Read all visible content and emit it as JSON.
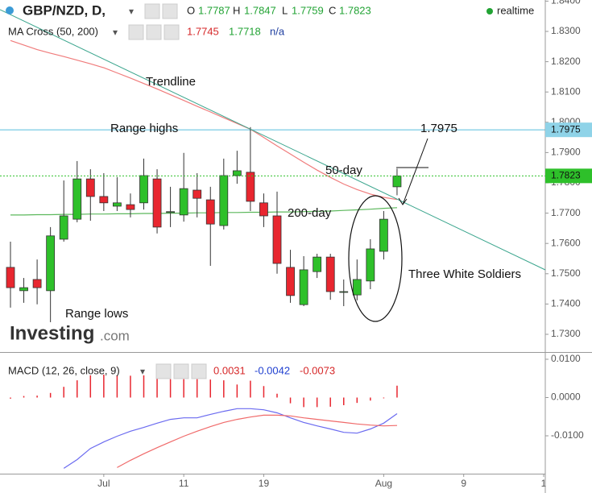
{
  "chart_data": {
    "type": "candlestick",
    "title": "GBP/NZD, D,",
    "status": "realtime",
    "ohlc_labels": [
      "O",
      "H",
      "L",
      "C"
    ],
    "categories": [
      null,
      null,
      null,
      null,
      null,
      null,
      null,
      "Jul",
      null,
      null,
      null,
      null,
      null,
      "11",
      null,
      null,
      null,
      null,
      null,
      "19",
      null,
      null,
      null,
      null,
      null,
      null,
      null,
      null,
      "Aug",
      null,
      null,
      null,
      null,
      null,
      "9",
      null,
      null,
      null,
      null,
      null,
      "1"
    ],
    "open": [
      1.7521,
      1.7444,
      1.7481,
      1.7444,
      1.7614,
      1.768,
      1.7813,
      1.7755,
      1.7723,
      1.7728,
      1.7734,
      1.7813,
      1.7702,
      1.7694,
      1.7776,
      1.7744,
      1.7659,
      1.7824,
      1.7835,
      1.7734,
      1.7691,
      1.7521,
      1.7398,
      1.7507,
      1.7555,
      1.744,
      1.743,
      1.7476,
      1.7574,
      1.7787,
      null,
      null,
      null,
      null,
      null,
      null,
      null,
      null,
      null,
      null,
      null
    ],
    "high": [
      1.7606,
      1.7486,
      1.7547,
      1.7654,
      1.7808,
      1.7872,
      1.7845,
      1.7832,
      1.7819,
      1.7765,
      1.788,
      1.7845,
      1.7787,
      1.7899,
      1.7832,
      1.7787,
      1.788,
      1.7906,
      1.7984,
      1.7765,
      1.7771,
      1.7579,
      1.7558,
      1.7566,
      1.7566,
      1.7481,
      1.7547,
      1.7614,
      1.7707,
      1.7847,
      null,
      null,
      null,
      null,
      null,
      null,
      null,
      null,
      null,
      null,
      null
    ],
    "low": [
      1.7388,
      1.7404,
      1.7399,
      1.734,
      1.7606,
      1.767,
      1.7675,
      1.7707,
      1.7707,
      1.7686,
      1.7712,
      1.7633,
      1.7654,
      1.7672,
      1.7686,
      1.7526,
      1.7646,
      1.7797,
      1.7707,
      1.7654,
      1.75,
      1.7404,
      1.7393,
      1.7486,
      1.7414,
      1.7393,
      1.7412,
      1.7449,
      1.7547,
      1.7759,
      null,
      null,
      null,
      null,
      null,
      null,
      null,
      null,
      null,
      null,
      null
    ],
    "close": [
      1.7454,
      1.7454,
      1.7454,
      1.7625,
      1.7691,
      1.7813,
      1.7755,
      1.7734,
      1.7734,
      1.7712,
      1.7824,
      1.7654,
      1.7705,
      1.7781,
      1.7749,
      1.7664,
      1.7824,
      1.784,
      1.7739,
      1.7691,
      1.7534,
      1.7428,
      1.7513,
      1.7555,
      1.7441,
      1.7441,
      1.7481,
      1.7582,
      1.768,
      1.7823,
      null,
      null,
      null,
      null,
      null,
      null,
      null,
      null,
      null,
      null,
      null
    ],
    "up_color": "#2ec02a",
    "down_color": "#e8262f",
    "ylim": [
      1.72415,
      1.84037
    ],
    "yticks": [
      {
        "value": 1.73,
        "label": "1.7300"
      },
      {
        "value": 1.74,
        "label": "1.7400"
      },
      {
        "value": 1.75,
        "label": "1.7500"
      },
      {
        "value": 1.76,
        "label": "1.7600"
      },
      {
        "value": 1.77,
        "label": "1.7700"
      },
      {
        "value": 1.78,
        "label": "1.7800"
      },
      {
        "value": 1.79,
        "label": "1.7900"
      },
      {
        "value": 1.8,
        "label": "1.8000"
      },
      {
        "value": 1.81,
        "label": "1.8100"
      },
      {
        "value": 1.82,
        "label": "1.8200"
      },
      {
        "value": 1.83,
        "label": "1.8300"
      },
      {
        "value": 1.84,
        "label": "1.8400"
      }
    ],
    "ma": {
      "title": "MA Cross (50, 200)",
      "extra": "n/a",
      "series": [
        {
          "name": "50-day",
          "color": "#f07c7c",
          "values": [
            1.827,
            1.8255,
            1.824,
            1.8228,
            1.8217,
            1.8205,
            1.8193,
            1.818,
            1.8163,
            1.8146,
            1.8128,
            1.811,
            1.8091,
            1.8072,
            1.8053,
            1.8034,
            1.8015,
            1.7996,
            1.7977,
            1.795,
            1.7922,
            1.7895,
            1.7868,
            1.7842,
            1.7818,
            1.7796,
            1.7778,
            1.7763,
            1.7752,
            1.7745,
            null,
            null,
            null,
            null,
            null,
            null,
            null,
            null,
            null,
            null,
            null
          ]
        },
        {
          "name": "200-day",
          "color": "#5cb85c",
          "values": [
            1.7694,
            1.7694,
            1.7695,
            1.7695,
            1.7696,
            1.7696,
            1.7697,
            1.7697,
            1.7698,
            1.7698,
            1.7699,
            1.7699,
            1.77,
            1.77,
            1.7701,
            1.7701,
            1.7702,
            1.7702,
            1.7703,
            1.7703,
            1.7704,
            1.7704,
            1.7705,
            1.7706,
            1.7707,
            1.7709,
            1.7711,
            1.7713,
            1.7716,
            1.7718,
            null,
            null,
            null,
            null,
            null,
            null,
            null,
            null,
            null,
            null,
            null
          ]
        }
      ]
    },
    "levels": [
      {
        "value": 1.7975,
        "color": "#8fd3e8"
      }
    ],
    "annotations": [
      "Trendline",
      "Range highs",
      "Range lows",
      "Three White Soldiers"
    ],
    "watermark": [
      "Investing",
      ".com"
    ],
    "macd": {
      "title": "MACD (12, 26, close, 9)",
      "ylim": [
        -0.01989,
        0.01168
      ],
      "yticks": [
        {
          "value": 0.01,
          "label": "0.0100"
        },
        {
          "value": 0,
          "label": "0.0000"
        },
        {
          "value": -0.01,
          "label": "-0.0100"
        }
      ],
      "histogram": {
        "color": "#e8262f",
        "values": [
          -0.0003,
          0.0004,
          0.0005,
          0.0012,
          0.0028,
          0.0045,
          0.0058,
          0.006,
          0.0058,
          0.0057,
          0.0058,
          0.0052,
          0.0048,
          0.0048,
          0.0048,
          0.0047,
          0.0045,
          0.0034,
          0.0044,
          0.003,
          0.001,
          -0.0015,
          -0.0025,
          -0.0025,
          -0.0024,
          -0.002,
          -0.0014,
          -0.0008,
          -0.0002,
          0.0031,
          null,
          null,
          null,
          null,
          null,
          null,
          null,
          null,
          null,
          null,
          null
        ]
      },
      "series": [
        {
          "color": "#6b6bf0",
          "values": [
            null,
            null,
            null,
            null,
            -0.0185,
            -0.0162,
            -0.0133,
            -0.0116,
            -0.0101,
            -0.0088,
            -0.0078,
            -0.0067,
            -0.0057,
            -0.0053,
            -0.0053,
            -0.0044,
            -0.0036,
            -0.0029,
            -0.0029,
            -0.0032,
            -0.004,
            -0.0053,
            -0.0065,
            -0.0074,
            -0.0082,
            -0.0091,
            -0.0093,
            -0.0082,
            -0.0067,
            -0.0042,
            null,
            null,
            null,
            null,
            null,
            null,
            null,
            null,
            null,
            null,
            null
          ]
        },
        {
          "color": "#f06a6a",
          "values": [
            null,
            null,
            null,
            null,
            null,
            null,
            null,
            null,
            -0.0183,
            -0.0164,
            -0.0147,
            -0.0131,
            -0.0116,
            -0.0101,
            -0.0088,
            -0.0076,
            -0.0065,
            -0.0057,
            -0.0051,
            -0.0046,
            -0.0046,
            -0.0048,
            -0.0053,
            -0.0057,
            -0.0061,
            -0.0065,
            -0.0069,
            -0.0072,
            -0.0074,
            -0.0073,
            null,
            null,
            null,
            null,
            null,
            null,
            null,
            null,
            null,
            null,
            null
          ]
        }
      ]
    }
  }
}
